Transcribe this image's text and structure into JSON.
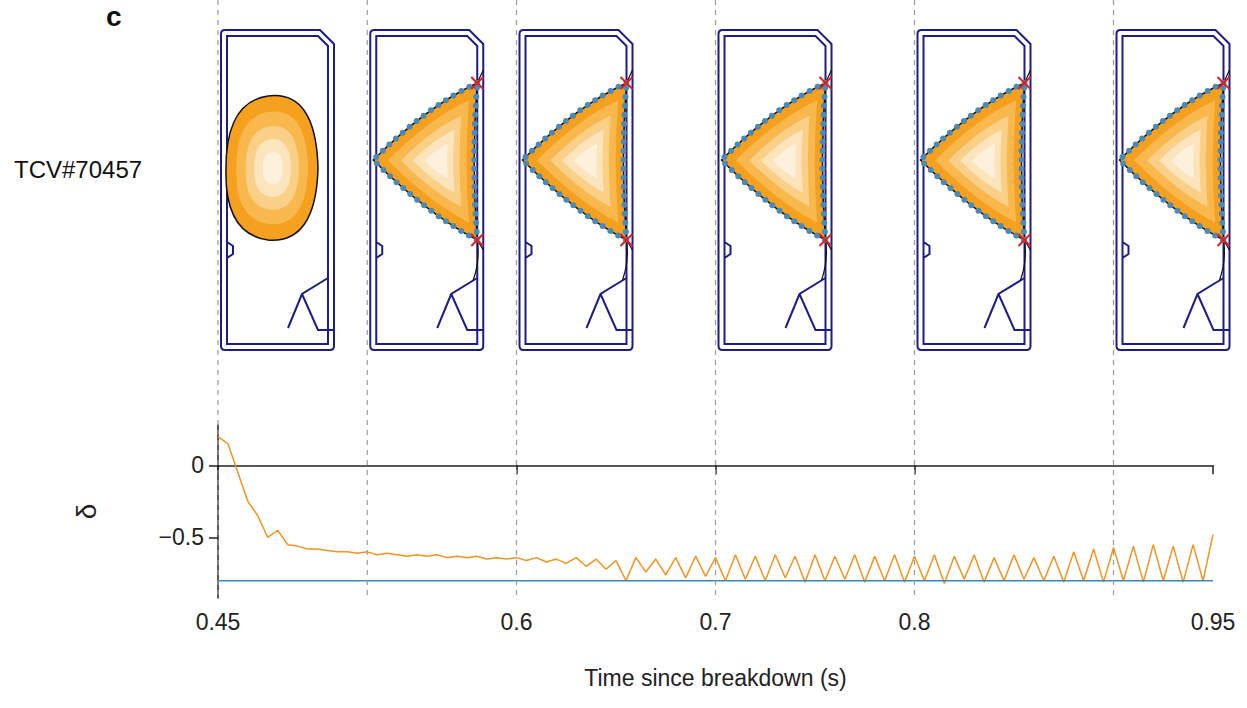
{
  "chart_data": {
    "type": "line",
    "panel_label": "c",
    "row_label": "TCV#70457",
    "x_label": "Time since breakdown (s)",
    "y_label": "δ",
    "xlim": [
      0.45,
      0.95
    ],
    "xticks": [
      0.45,
      0.6,
      0.7,
      0.8,
      0.95
    ],
    "ylim": [
      -0.92,
      0.28
    ],
    "yticks": [
      {
        "value": -0.5,
        "label": "−0.5"
      },
      0
    ],
    "grid": false,
    "snapshot_times": [
      0.45,
      0.525,
      0.6,
      0.7,
      0.8,
      0.9
    ],
    "series": [
      {
        "color": "#f7931e",
        "line_style": "solid",
        "x": [
          0.45,
          0.455,
          0.46,
          0.465,
          0.47,
          0.475,
          0.48,
          0.485,
          0.49,
          0.495,
          0.5,
          0.505,
          0.51,
          0.515,
          0.52,
          0.525,
          0.53,
          0.535,
          0.54,
          0.545,
          0.55,
          0.555,
          0.56,
          0.565,
          0.57,
          0.575,
          0.58,
          0.585,
          0.59,
          0.595,
          0.6,
          0.605,
          0.61,
          0.615,
          0.62,
          0.625,
          0.63,
          0.635,
          0.64,
          0.645,
          0.65,
          0.655,
          0.66,
          0.665,
          0.67,
          0.675,
          0.68,
          0.685,
          0.69,
          0.695,
          0.7,
          0.705,
          0.71,
          0.715,
          0.72,
          0.725,
          0.73,
          0.735,
          0.74,
          0.745,
          0.75,
          0.755,
          0.76,
          0.765,
          0.77,
          0.775,
          0.78,
          0.785,
          0.79,
          0.795,
          0.8,
          0.805,
          0.81,
          0.815,
          0.82,
          0.825,
          0.83,
          0.835,
          0.84,
          0.845,
          0.85,
          0.855,
          0.86,
          0.865,
          0.87,
          0.875,
          0.88,
          0.885,
          0.89,
          0.895,
          0.9,
          0.905,
          0.91,
          0.915,
          0.92,
          0.925,
          0.93,
          0.935,
          0.94,
          0.945,
          0.95
        ],
        "values": [
          0.2,
          0.15,
          -0.05,
          -0.25,
          -0.35,
          -0.5,
          -0.45,
          -0.55,
          -0.56,
          -0.58,
          -0.58,
          -0.59,
          -0.6,
          -0.6,
          -0.61,
          -0.6,
          -0.62,
          -0.61,
          -0.62,
          -0.63,
          -0.62,
          -0.63,
          -0.62,
          -0.64,
          -0.63,
          -0.64,
          -0.63,
          -0.65,
          -0.64,
          -0.65,
          -0.64,
          -0.66,
          -0.64,
          -0.67,
          -0.65,
          -0.68,
          -0.64,
          -0.7,
          -0.65,
          -0.72,
          -0.66,
          -0.8,
          -0.64,
          -0.74,
          -0.65,
          -0.76,
          -0.64,
          -0.78,
          -0.63,
          -0.77,
          -0.64,
          -0.8,
          -0.62,
          -0.79,
          -0.63,
          -0.8,
          -0.62,
          -0.78,
          -0.63,
          -0.81,
          -0.62,
          -0.8,
          -0.63,
          -0.79,
          -0.62,
          -0.81,
          -0.63,
          -0.8,
          -0.62,
          -0.81,
          -0.63,
          -0.8,
          -0.62,
          -0.82,
          -0.63,
          -0.79,
          -0.62,
          -0.81,
          -0.64,
          -0.8,
          -0.62,
          -0.79,
          -0.64,
          -0.8,
          -0.63,
          -0.81,
          -0.6,
          -0.8,
          -0.58,
          -0.81,
          -0.57,
          -0.8,
          -0.56,
          -0.81,
          -0.55,
          -0.8,
          -0.56,
          -0.81,
          -0.55,
          -0.8,
          -0.48
        ]
      },
      {
        "color": "#3a87b8",
        "line_style": "solid",
        "x": [
          0.45,
          0.95
        ],
        "values": [
          -0.8,
          -0.8
        ]
      }
    ]
  }
}
